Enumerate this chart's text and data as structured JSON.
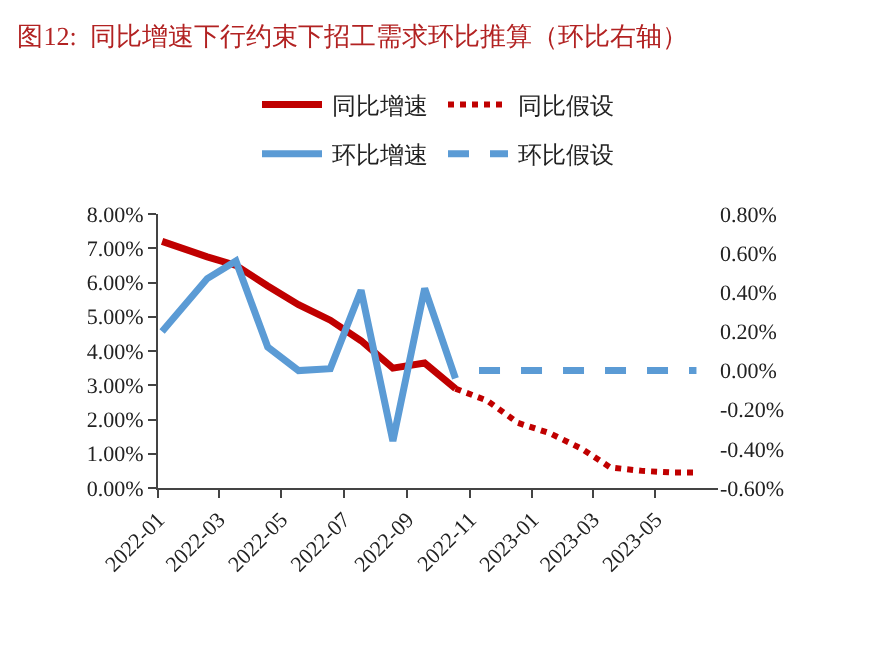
{
  "chart_data": {
    "type": "line",
    "title": "图12:  同比增速下行约束下招工需求环比推算（环比右轴）",
    "legend": "top",
    "xlim": [
      "2022-01-01",
      "2023-07-01"
    ],
    "xticks": [
      "2022-01",
      "2022-03",
      "2022-05",
      "2022-07",
      "2022-09",
      "2022-11",
      "2023-01",
      "2023-03",
      "2023-05"
    ],
    "ylim": [
      0,
      8
    ],
    "yticks": [
      {
        "value": 0,
        "label": "0.00%"
      },
      {
        "value": 1,
        "label": "1.00%"
      },
      {
        "value": 2,
        "label": "2.00%"
      },
      {
        "value": 3,
        "label": "3.00%"
      },
      {
        "value": 4,
        "label": "4.00%"
      },
      {
        "value": 5,
        "label": "5.00%"
      },
      {
        "value": 6,
        "label": "6.00%"
      },
      {
        "value": 7,
        "label": "7.00%"
      },
      {
        "value": 8,
        "label": "8.00%"
      }
    ],
    "y2lim": [
      -0.6,
      0.8
    ],
    "y2ticks": [
      {
        "value": -0.6,
        "label": "-0.60%"
      },
      {
        "value": -0.4,
        "label": "-0.40%"
      },
      {
        "value": -0.2,
        "label": "-0.20%"
      },
      {
        "value": 0,
        "label": "0.00%"
      },
      {
        "value": 0.2,
        "label": "0.20%"
      },
      {
        "value": 0.4,
        "label": "0.40%"
      },
      {
        "value": 0.6,
        "label": "0.60%"
      },
      {
        "value": 0.8,
        "label": "0.80%"
      }
    ],
    "series": [
      {
        "name": "同比增速",
        "color": "#c00000",
        "line_style": "solid",
        "x": [
          "2022-01-05",
          "2022-02-18",
          "2022-03-18",
          "2022-04-18",
          "2022-05-18",
          "2022-06-18",
          "2022-07-18",
          "2022-08-18",
          "2022-09-18",
          "2022-10-18"
        ],
        "values": [
          7.2,
          6.75,
          6.5,
          5.9,
          5.35,
          4.9,
          4.3,
          3.5,
          3.65,
          2.9
        ]
      },
      {
        "name": "同比假设",
        "color": "#c00000",
        "line_style": "dotted",
        "x": [
          "2022-10-18",
          "2022-11-18",
          "2022-12-18",
          "2023-01-18",
          "2023-02-18",
          "2023-03-18",
          "2023-04-18",
          "2023-05-18",
          "2023-06-10"
        ],
        "values": [
          2.9,
          2.55,
          1.9,
          1.6,
          1.15,
          0.6,
          0.5,
          0.45,
          0.45
        ]
      },
      {
        "name": "环比增速",
        "color": "#5b9bd5",
        "line_style": "solid",
        "axis": "y2",
        "x": [
          "2022-01-05",
          "2022-02-18",
          "2022-03-18",
          "2022-04-18",
          "2022-05-18",
          "2022-06-18",
          "2022-07-18",
          "2022-08-18",
          "2022-09-18",
          "2022-10-18"
        ],
        "values": [
          0.2,
          0.47,
          0.56,
          0.12,
          0.0,
          0.01,
          0.41,
          -0.36,
          0.42,
          -0.04
        ]
      },
      {
        "name": "环比假设",
        "color": "#5b9bd5",
        "line_style": "dashed",
        "axis": "y2",
        "x": [
          "2022-11-10",
          "2022-12-18",
          "2023-01-18",
          "2023-02-18",
          "2023-03-18",
          "2023-04-18",
          "2023-05-18",
          "2023-06-10"
        ],
        "values": [
          0,
          0,
          0,
          0,
          0,
          0,
          0,
          0
        ]
      }
    ]
  }
}
